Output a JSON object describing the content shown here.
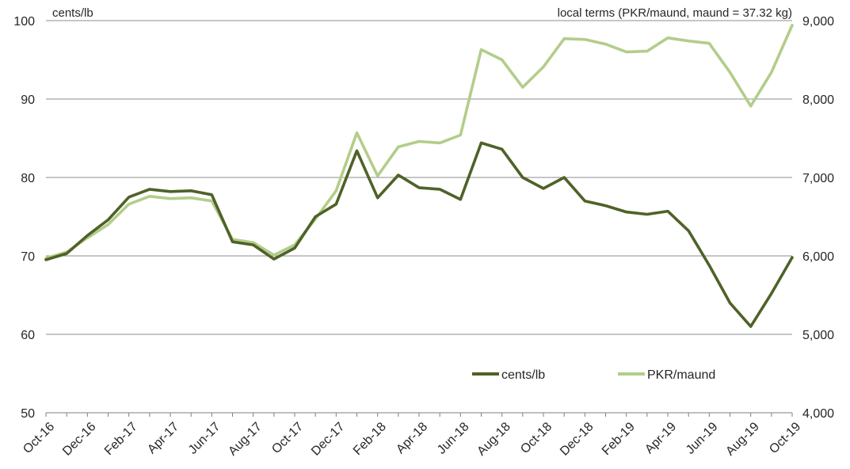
{
  "chart_data": {
    "type": "line",
    "left_axis_unit": "cents/lb",
    "right_axis_unit": "local terms (PKR/maund, maund = 37.32 kg)",
    "x": [
      "Oct-16",
      "Nov-16",
      "Dec-16",
      "Jan-17",
      "Feb-17",
      "Mar-17",
      "Apr-17",
      "May-17",
      "Jun-17",
      "Jul-17",
      "Aug-17",
      "Sep-17",
      "Oct-17",
      "Nov-17",
      "Dec-17",
      "Jan-18",
      "Feb-18",
      "Mar-18",
      "Apr-18",
      "May-18",
      "Jun-18",
      "Jul-18",
      "Aug-18",
      "Sep-18",
      "Oct-18",
      "Nov-18",
      "Dec-18",
      "Jan-19",
      "Feb-19",
      "Mar-19",
      "Apr-19",
      "May-19",
      "Jun-19",
      "Jul-19",
      "Aug-19",
      "Sep-19",
      "Oct-19"
    ],
    "x_tick_labels": [
      "Oct-16",
      "Dec-16",
      "Feb-17",
      "Apr-17",
      "Jun-17",
      "Aug-17",
      "Oct-17",
      "Dec-17",
      "Feb-18",
      "Apr-18",
      "Jun-18",
      "Aug-18",
      "Oct-18",
      "Dec-18",
      "Feb-19",
      "Apr-19",
      "Jun-19",
      "Aug-19",
      "Oct-19"
    ],
    "y_left": {
      "range": [
        50,
        100
      ],
      "ticks": [
        50,
        60,
        70,
        80,
        90,
        100
      ],
      "tick_labels": [
        "50",
        "60",
        "70",
        "80",
        "90",
        "100"
      ]
    },
    "y_right": {
      "range": [
        4000,
        9000
      ],
      "ticks": [
        4000,
        5000,
        6000,
        7000,
        8000,
        9000
      ],
      "tick_labels": [
        "4,000",
        "5,000",
        "6,000",
        "7,000",
        "8,000",
        "9,000"
      ]
    },
    "grid": "horizontal",
    "legend_position": "bottom-right inside plot",
    "series": [
      {
        "name": "cents/lb",
        "axis": "left",
        "color": "#4f6228",
        "values": [
          69.5,
          70.3,
          72.6,
          74.6,
          77.5,
          78.5,
          78.2,
          78.3,
          77.8,
          71.8,
          71.4,
          69.6,
          71.0,
          75.0,
          76.6,
          83.4,
          77.4,
          80.3,
          78.7,
          78.5,
          77.2,
          84.4,
          83.6,
          80.0,
          78.6,
          80.0,
          77.0,
          76.4,
          75.6,
          75.3,
          75.7,
          73.2,
          68.8,
          64.0,
          61.0,
          65.2,
          69.8
        ]
      },
      {
        "name": "PKR/maund",
        "axis": "right",
        "color": "#b3cd8a",
        "values": [
          5970,
          6050,
          6230,
          6400,
          6660,
          6760,
          6730,
          6740,
          6700,
          6210,
          6170,
          6010,
          6140,
          6470,
          6830,
          7570,
          7020,
          7390,
          7460,
          7440,
          7540,
          8630,
          8500,
          8150,
          8410,
          8770,
          8760,
          8700,
          8600,
          8610,
          8780,
          8740,
          8710,
          8340,
          7910,
          8340,
          8940
        ]
      }
    ]
  }
}
